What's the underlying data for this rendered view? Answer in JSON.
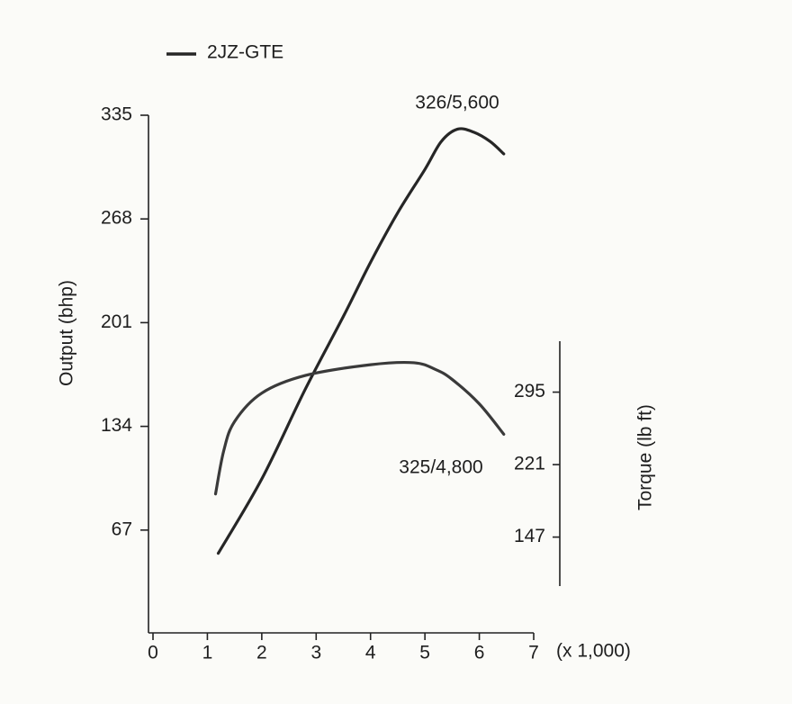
{
  "chart_data": {
    "type": "line",
    "xlabel": "(x 1,000)",
    "ylabel": "Output (bhp)",
    "y2label": "Torque (lb ft)",
    "xlim": [
      0,
      7
    ],
    "xticks": [
      0,
      1,
      2,
      3,
      4,
      5,
      6,
      7
    ],
    "ylim": [
      0,
      335
    ],
    "yticks": [
      67,
      134,
      201,
      268,
      335
    ],
    "y2lim": [
      97,
      347
    ],
    "y2ticks": [
      147,
      221,
      295
    ],
    "series": [
      {
        "name": "2JZ-GTE",
        "color": "#262626",
        "x": [
          1.2,
          2,
          2.8,
          3.5,
          4,
          4.5,
          5,
          5.3,
          5.6,
          5.9,
          6.2,
          6.45
        ],
        "values": [
          52,
          100,
          158,
          205,
          240,
          272,
          300,
          318,
          326,
          324,
          318,
          310
        ]
      },
      {
        "name": "2JZ-GTE",
        "color": "#3a3a3a",
        "axis": "y2",
        "x": [
          1.15,
          1.3,
          1.5,
          2,
          2.8,
          4,
          4.8,
          5.2,
          5.5,
          6,
          6.45
        ],
        "values": [
          191,
          235,
          265,
          294,
          312,
          323,
          325,
          318,
          308,
          283,
          252
        ]
      }
    ],
    "annotations": [
      "326/5,600",
      "325/4,800"
    ],
    "legend": "top-left"
  }
}
